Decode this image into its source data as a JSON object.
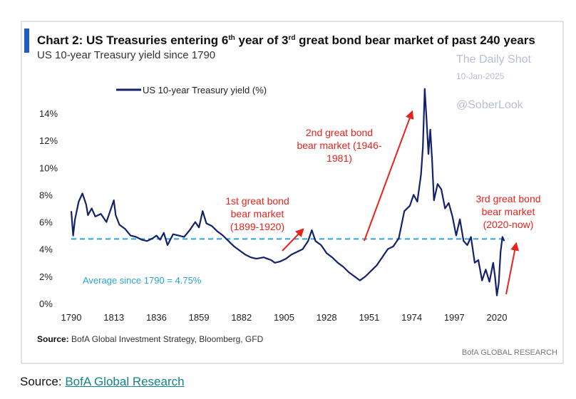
{
  "chart_data": {
    "type": "line",
    "title": "Chart 2: US Treasuries entering 6th year of 3rd great bond bear market of past 240 years",
    "title_parts": {
      "a": "Chart 2: US Treasuries entering 6",
      "sup1": "th",
      "b": " year of 3",
      "sup2": "rd",
      "c": " great bond bear market of past 240 years"
    },
    "subtitle": "US 10-year Treasury yield since 1790",
    "legend": "US 10-year Treasury yield (%)",
    "legend_placement": "top-left",
    "xlim": [
      1790,
      2035
    ],
    "ylim": [
      0,
      16
    ],
    "x_ticks": [
      "1790",
      "1813",
      "1836",
      "1859",
      "1882",
      "1905",
      "1928",
      "1951",
      "1974",
      "1997",
      "2020"
    ],
    "y_ticks": [
      "0%",
      "2%",
      "4%",
      "6%",
      "8%",
      "10%",
      "12%",
      "14%"
    ],
    "grid": false,
    "series": [
      {
        "name": "US 10-year Treasury yield (%)",
        "color": "#14226b",
        "x": [
          1790,
          1791,
          1792,
          1794,
          1796,
          1798,
          1799,
          1801,
          1803,
          1806,
          1809,
          1811,
          1813,
          1814,
          1816,
          1819,
          1822,
          1825,
          1828,
          1831,
          1834,
          1836,
          1838,
          1840,
          1842,
          1845,
          1848,
          1851,
          1854,
          1857,
          1859,
          1861,
          1863,
          1866,
          1869,
          1872,
          1875,
          1878,
          1881,
          1884,
          1887,
          1890,
          1894,
          1898,
          1900,
          1903,
          1906,
          1909,
          1912,
          1915,
          1918,
          1920,
          1922,
          1925,
          1928,
          1931,
          1934,
          1937,
          1940,
          1943,
          1946,
          1949,
          1952,
          1955,
          1958,
          1961,
          1964,
          1967,
          1970,
          1973,
          1975,
          1977,
          1979,
          1980,
          1981,
          1982,
          1983,
          1984,
          1985,
          1986,
          1988,
          1990,
          1992,
          1994,
          1996,
          1998,
          2000,
          2002,
          2004,
          2006,
          2008,
          2010,
          2012,
          2014,
          2016,
          2018,
          2019,
          2020,
          2021,
          2022,
          2023,
          2024
        ],
        "y": [
          6.8,
          5.0,
          6.2,
          7.5,
          8.1,
          7.3,
          6.5,
          7.0,
          6.4,
          6.6,
          6.0,
          6.8,
          7.6,
          6.5,
          5.8,
          5.5,
          5.0,
          4.9,
          4.7,
          4.6,
          4.8,
          5.0,
          4.7,
          5.2,
          4.3,
          5.1,
          5.0,
          4.9,
          5.4,
          6.0,
          5.6,
          6.8,
          5.9,
          5.7,
          5.3,
          5.0,
          4.6,
          4.2,
          3.9,
          3.6,
          3.4,
          3.3,
          3.4,
          3.2,
          3.0,
          3.1,
          3.3,
          3.6,
          3.8,
          4.0,
          4.6,
          5.4,
          4.6,
          4.3,
          3.7,
          3.4,
          3.0,
          2.7,
          2.3,
          2.0,
          1.7,
          2.0,
          2.4,
          2.8,
          3.4,
          4.0,
          4.2,
          4.8,
          6.8,
          7.2,
          8.0,
          7.5,
          9.5,
          11.5,
          15.8,
          13.5,
          11.0,
          12.8,
          10.5,
          7.6,
          8.8,
          8.4,
          7.0,
          7.4,
          6.4,
          5.0,
          6.2,
          4.6,
          4.3,
          4.9,
          3.0,
          3.2,
          1.7,
          2.5,
          1.6,
          3.0,
          2.0,
          0.6,
          1.5,
          3.8,
          4.9,
          4.6
        ]
      }
    ],
    "reference_line": {
      "label": "Average since 1790 = 4.75%",
      "value": 4.75,
      "color": "#2aa4db",
      "style": "dashed"
    },
    "annotations": [
      {
        "lines": [
          "1st great bond",
          "bear market",
          "(1899-1920)"
        ],
        "color": "#e8231c"
      },
      {
        "lines": [
          "2nd great bond",
          "bear market (1946-",
          "1981)"
        ],
        "color": "#e8231c"
      },
      {
        "lines": [
          "3rd great bond",
          "bear market",
          "(2020-now)"
        ],
        "color": "#e8231c"
      }
    ],
    "source_prefix": "Source:",
    "source": " BofA Global Investment Strategy, Bloomberg, GFD",
    "brand": "BofA GLOBAL RESEARCH",
    "watermark": {
      "line1": "The Daily Shot",
      "date": "10-Jan-2025",
      "handle": "@SoberLook"
    }
  },
  "footer": {
    "prefix": "Source: ",
    "link": "BofA Global Research"
  }
}
